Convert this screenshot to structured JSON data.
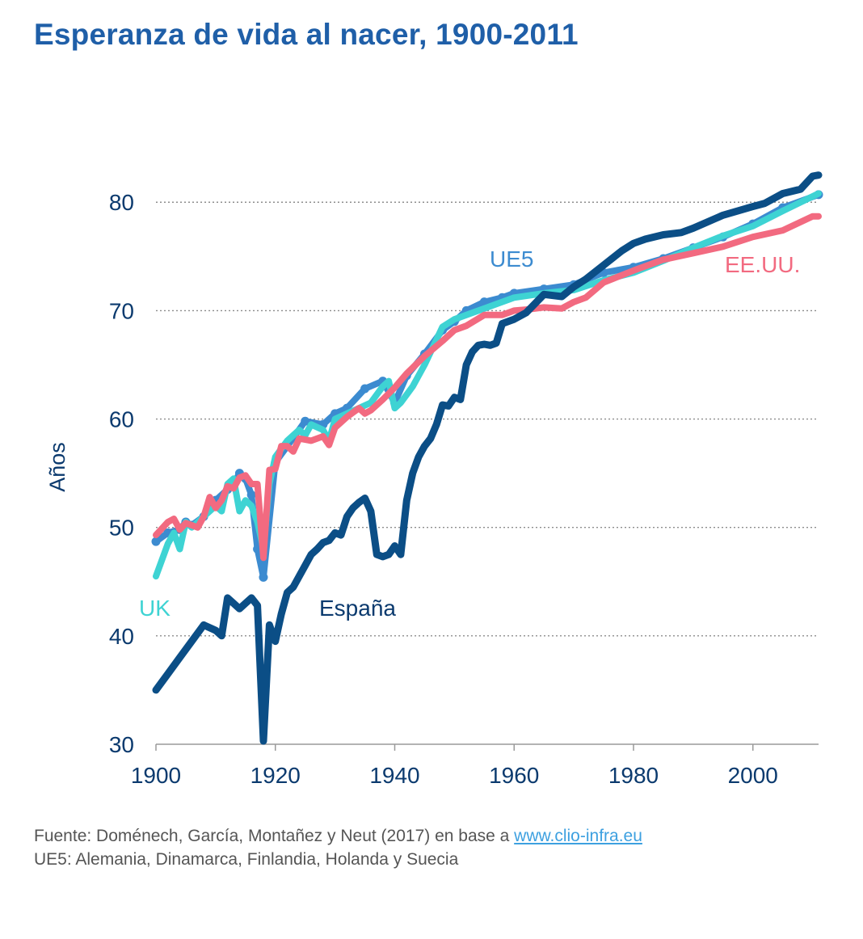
{
  "chart_data": {
    "type": "line",
    "title": "Esperanza de vida al nacer, 1900-2011",
    "xlabel": "",
    "ylabel": "Años",
    "xlim": [
      1900,
      2011
    ],
    "ylim": [
      30,
      83
    ],
    "xticks": [
      1900,
      1920,
      1940,
      1960,
      1980,
      2000
    ],
    "yticks": [
      30,
      40,
      50,
      60,
      70,
      80
    ],
    "grid": true,
    "series": [
      {
        "name": "UE5",
        "label": "UE5",
        "color": "#3c8bd0",
        "x": [
          1900,
          1902,
          1904,
          1905,
          1906,
          1908,
          1910,
          1912,
          1913,
          1914,
          1915,
          1916,
          1917,
          1918,
          1920,
          1922,
          1925,
          1928,
          1930,
          1932,
          1935,
          1938,
          1940,
          1942,
          1945,
          1948,
          1950,
          1952,
          1955,
          1958,
          1960,
          1965,
          1970,
          1975,
          1980,
          1985,
          1990,
          1995,
          2000,
          2005,
          2011
        ],
        "y": [
          48.7,
          49.5,
          49.8,
          50.5,
          50.2,
          51.0,
          52.5,
          53.5,
          54.0,
          55.0,
          54.5,
          53.0,
          48.0,
          45.4,
          56.0,
          57.5,
          59.8,
          59.5,
          60.5,
          61.0,
          62.8,
          63.5,
          61.5,
          64.0,
          66.0,
          68.2,
          69.0,
          70.0,
          70.8,
          71.2,
          71.6,
          72.0,
          72.4,
          73.5,
          74.0,
          74.8,
          75.8,
          76.8,
          78.0,
          79.5,
          80.7
        ]
      },
      {
        "name": "UK",
        "label": "UK",
        "color": "#3ed3d3",
        "x": [
          1900,
          1902,
          1903,
          1904,
          1905,
          1906,
          1908,
          1910,
          1911,
          1912,
          1913,
          1914,
          1915,
          1916,
          1917,
          1918,
          1919,
          1920,
          1922,
          1924,
          1925,
          1926,
          1928,
          1929,
          1930,
          1932,
          1934,
          1936,
          1938,
          1939,
          1940,
          1941,
          1943,
          1945,
          1948,
          1950,
          1955,
          1960,
          1965,
          1970,
          1975,
          1980,
          1985,
          1990,
          1995,
          2000,
          2005,
          2011
        ],
        "y": [
          45.5,
          48.5,
          49.5,
          48.0,
          50.5,
          50.0,
          51.0,
          52.0,
          51.5,
          54.0,
          54.5,
          51.5,
          52.5,
          52.0,
          50.5,
          48.0,
          54.0,
          56.5,
          58.0,
          59.0,
          58.5,
          59.5,
          59.0,
          58.0,
          60.0,
          60.5,
          61.0,
          61.5,
          63.0,
          63.5,
          61.0,
          61.5,
          63.0,
          65.0,
          68.5,
          69.2,
          70.2,
          71.2,
          71.6,
          71.9,
          72.8,
          73.5,
          74.6,
          75.8,
          76.9,
          77.8,
          79.2,
          80.8
        ]
      },
      {
        "name": "EE.UU.",
        "label": "EE.UU.",
        "color": "#f26a80",
        "x": [
          1900,
          1902,
          1903,
          1904,
          1905,
          1906,
          1907,
          1908,
          1909,
          1910,
          1911,
          1912,
          1913,
          1914,
          1915,
          1916,
          1917,
          1918,
          1919,
          1920,
          1921,
          1922,
          1923,
          1924,
          1926,
          1928,
          1929,
          1930,
          1932,
          1934,
          1935,
          1936,
          1938,
          1940,
          1942,
          1945,
          1948,
          1950,
          1952,
          1955,
          1958,
          1960,
          1962,
          1965,
          1968,
          1970,
          1972,
          1975,
          1980,
          1985,
          1990,
          1995,
          2000,
          2005,
          2010,
          2011
        ],
        "y": [
          49.3,
          50.5,
          50.8,
          49.8,
          50.4,
          50.2,
          50.0,
          51.0,
          52.8,
          51.8,
          52.5,
          53.8,
          53.6,
          54.6,
          54.8,
          54.0,
          54.0,
          47.2,
          55.3,
          55.4,
          57.5,
          57.5,
          57.0,
          58.2,
          58.0,
          58.4,
          57.6,
          59.2,
          60.2,
          61.0,
          60.5,
          60.8,
          61.8,
          62.9,
          64.2,
          65.8,
          67.2,
          68.2,
          68.6,
          69.6,
          69.6,
          70.0,
          70.1,
          70.3,
          70.2,
          70.8,
          71.2,
          72.6,
          73.7,
          74.7,
          75.3,
          75.9,
          76.8,
          77.4,
          78.7,
          78.7
        ]
      },
      {
        "name": "España",
        "label": "España",
        "color": "#0b4e86",
        "x": [
          1900,
          1902,
          1904,
          1906,
          1908,
          1910,
          1911,
          1912,
          1913,
          1914,
          1915,
          1916,
          1917,
          1918,
          1919,
          1920,
          1921,
          1922,
          1923,
          1924,
          1925,
          1926,
          1927,
          1928,
          1929,
          1930,
          1931,
          1932,
          1933,
          1934,
          1935,
          1936,
          1937,
          1938,
          1939,
          1940,
          1941,
          1942,
          1943,
          1944,
          1945,
          1946,
          1947,
          1948,
          1949,
          1950,
          1951,
          1952,
          1953,
          1954,
          1955,
          1956,
          1957,
          1958,
          1960,
          1962,
          1965,
          1968,
          1970,
          1972,
          1975,
          1978,
          1980,
          1982,
          1985,
          1988,
          1990,
          1995,
          2000,
          2002,
          2005,
          2008,
          2010,
          2011
        ],
        "y": [
          35.0,
          36.5,
          38.0,
          39.5,
          41.0,
          40.5,
          40.0,
          43.5,
          43.0,
          42.5,
          43.0,
          43.5,
          42.8,
          30.3,
          41.0,
          39.5,
          42.0,
          44.0,
          44.5,
          45.5,
          46.5,
          47.5,
          48.0,
          48.6,
          48.8,
          49.5,
          49.3,
          51.0,
          51.8,
          52.3,
          52.7,
          51.5,
          47.5,
          47.3,
          47.5,
          48.3,
          47.5,
          52.5,
          55.0,
          56.5,
          57.5,
          58.2,
          59.5,
          61.3,
          61.2,
          62.0,
          61.8,
          65.0,
          66.2,
          66.8,
          66.9,
          66.8,
          67.0,
          68.8,
          69.2,
          69.8,
          71.5,
          71.3,
          72.2,
          72.9,
          74.2,
          75.5,
          76.2,
          76.6,
          77.0,
          77.2,
          77.6,
          78.8,
          79.6,
          79.9,
          80.8,
          81.2,
          82.4,
          82.5
        ]
      }
    ],
    "annotations": [
      {
        "text": "UE5",
        "series": "UE5"
      },
      {
        "text": "EE.UU.",
        "series": "EE.UU."
      },
      {
        "text": "UK",
        "series": "UK"
      },
      {
        "text": "España",
        "series": "España"
      }
    ]
  },
  "footer": {
    "source_prefix": "Fuente: Doménech, García, Montañez y Neut (2017) en base a ",
    "source_link": "www.clio-infra.eu",
    "note": "UE5: Alemania, Dinamarca, Finlandia, Holanda y Suecia"
  }
}
